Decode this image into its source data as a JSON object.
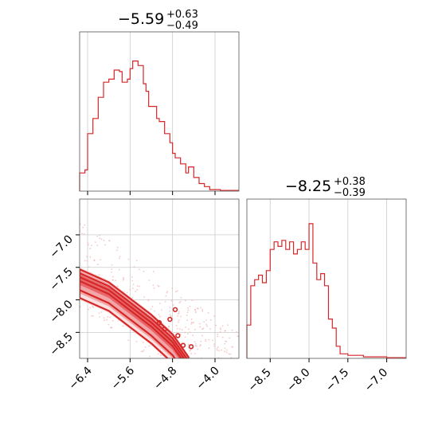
{
  "colors": {
    "series": "#d62728",
    "grid": "#cccccc",
    "axis": "#555555"
  },
  "chart_data": [
    {
      "type": "histogram",
      "panel": "p1-marginal",
      "title": {
        "median": "−5.59",
        "plus": "+0.63",
        "minus": "−0.49"
      },
      "xlim": [
        -6.55,
        -3.55
      ],
      "x_ticks": [
        -6.4,
        -5.6,
        -4.8,
        -4.0
      ],
      "x_tick_labels": [],
      "grid": true,
      "bins": [
        [
          -6.55,
          0.12
        ],
        [
          -6.45,
          0.14
        ],
        [
          -6.4,
          0.38
        ],
        [
          -6.3,
          0.48
        ],
        [
          -6.2,
          0.62
        ],
        [
          -6.1,
          0.72
        ],
        [
          -6.0,
          0.74
        ],
        [
          -5.9,
          0.8
        ],
        [
          -5.8,
          0.79
        ],
        [
          -5.75,
          0.72
        ],
        [
          -5.65,
          0.74
        ],
        [
          -5.6,
          0.81
        ],
        [
          -5.55,
          0.86
        ],
        [
          -5.45,
          0.83
        ],
        [
          -5.35,
          0.71
        ],
        [
          -5.3,
          0.66
        ],
        [
          -5.25,
          0.56
        ],
        [
          -5.1,
          0.48
        ],
        [
          -5.05,
          0.46
        ],
        [
          -4.95,
          0.38
        ],
        [
          -4.85,
          0.32
        ],
        [
          -4.8,
          0.25
        ],
        [
          -4.75,
          0.22
        ],
        [
          -4.65,
          0.18
        ],
        [
          -4.55,
          0.12
        ],
        [
          -4.5,
          0.16
        ],
        [
          -4.4,
          0.09
        ],
        [
          -4.3,
          0.05
        ],
        [
          -4.2,
          0.03
        ],
        [
          -4.1,
          0.01
        ],
        [
          -3.9,
          0.005
        ]
      ]
    },
    {
      "type": "histogram",
      "panel": "p2-marginal",
      "title": {
        "median": "−8.25",
        "plus": "+0.38",
        "minus": "−0.39"
      },
      "xlim": [
        -8.8,
        -6.75
      ],
      "x_ticks": [
        -8.5,
        -8.0,
        -7.5,
        -7.0
      ],
      "x_tick_labels": [
        "−8.5",
        "−8.0",
        "−7.5",
        "−7.0"
      ],
      "grid": true,
      "bins": [
        [
          -8.8,
          0.22
        ],
        [
          -8.75,
          0.48
        ],
        [
          -8.7,
          0.52
        ],
        [
          -8.65,
          0.55
        ],
        [
          -8.6,
          0.5
        ],
        [
          -8.55,
          0.58
        ],
        [
          -8.5,
          0.72
        ],
        [
          -8.45,
          0.77
        ],
        [
          -8.4,
          0.74
        ],
        [
          -8.35,
          0.78
        ],
        [
          -8.3,
          0.72
        ],
        [
          -8.25,
          0.77
        ],
        [
          -8.2,
          0.69
        ],
        [
          -8.15,
          0.72
        ],
        [
          -8.1,
          0.77
        ],
        [
          -8.05,
          0.72
        ],
        [
          -8.0,
          0.89
        ],
        [
          -7.95,
          0.63
        ],
        [
          -7.9,
          0.52
        ],
        [
          -7.85,
          0.56
        ],
        [
          -7.8,
          0.48
        ],
        [
          -7.75,
          0.26
        ],
        [
          -7.7,
          0.2
        ],
        [
          -7.65,
          0.08
        ],
        [
          -7.6,
          0.03
        ],
        [
          -7.5,
          0.02
        ],
        [
          -7.3,
          0.01
        ],
        [
          -7.0,
          0.005
        ]
      ]
    },
    {
      "type": "scatter",
      "panel": "p1-vs-p2",
      "xlim": [
        -6.55,
        -3.55
      ],
      "ylim": [
        -8.9,
        -6.45
      ],
      "x_ticks": [
        -6.4,
        -5.6,
        -4.8,
        -4.0
      ],
      "x_tick_labels": [
        "−6.4",
        "−5.6",
        "−4.8",
        "−4.0"
      ],
      "y_ticks": [
        -7.0,
        -7.5,
        -8.0,
        -8.5
      ],
      "y_tick_labels": [
        "−7.0",
        "−7.5",
        "−8.0",
        "−8.5"
      ],
      "grid": true,
      "density_band": {
        "top_edge": [
          [
            -6.55,
            -7.55
          ],
          [
            -6.0,
            -7.75
          ],
          [
            -5.6,
            -8.0
          ],
          [
            -5.2,
            -8.25
          ],
          [
            -4.8,
            -8.55
          ],
          [
            -4.5,
            -8.9
          ]
        ],
        "width": 0.5
      },
      "contour_levels": 3
    }
  ]
}
